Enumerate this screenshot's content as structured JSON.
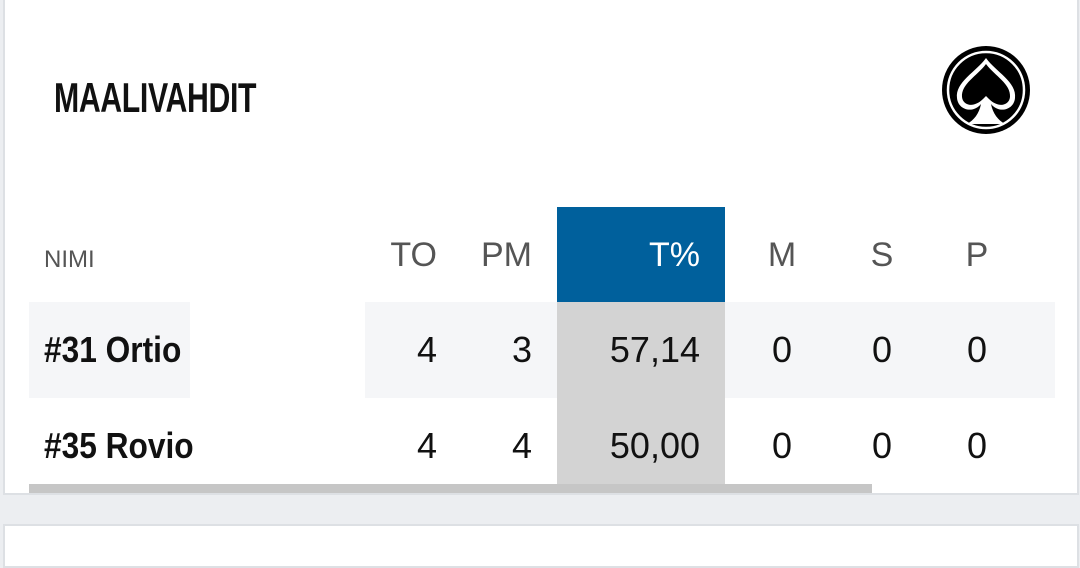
{
  "header": {
    "title": "MAALIVAHDIT"
  },
  "table": {
    "columns": [
      "NIMI",
      "TO",
      "PM",
      "T%",
      "M",
      "S",
      "P"
    ],
    "rows": [
      [
        "#31 Ortio",
        "4",
        "3",
        "57,14",
        "0",
        "0",
        "0"
      ],
      [
        "#35 Rovio",
        "4",
        "4",
        "50,00",
        "0",
        "0",
        "0"
      ]
    ]
  }
}
